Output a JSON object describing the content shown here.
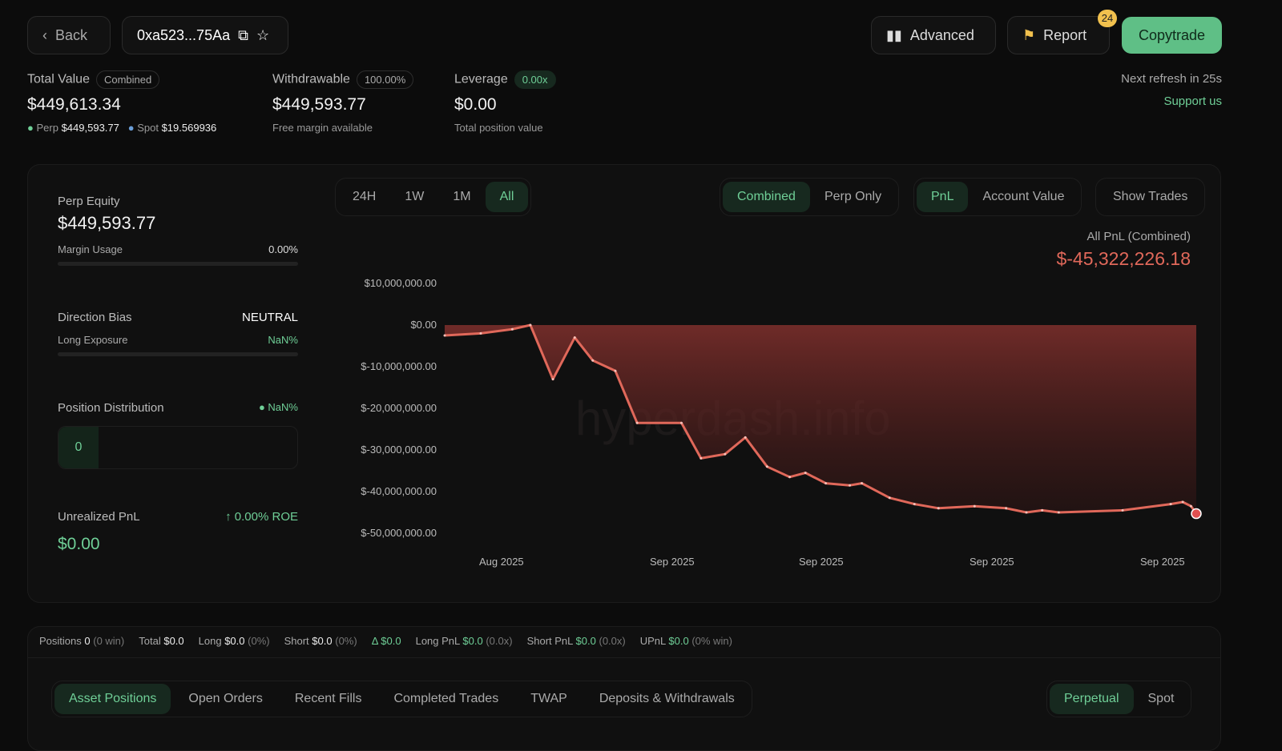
{
  "header": {
    "back": "Back",
    "address": "0xa523...75Aa",
    "advanced": "Advanced",
    "report": "Report",
    "report_badge": "24",
    "copytrade": "Copytrade",
    "next_refresh": "Next refresh in 25s",
    "support": "Support us"
  },
  "summary": {
    "total": {
      "label": "Total Value",
      "pill": "Combined",
      "value": "$449,613.34",
      "perp_label": "Perp",
      "perp_value": "$449,593.77",
      "spot_label": "Spot",
      "spot_value": "$19.569936"
    },
    "withdrawable": {
      "label": "Withdrawable",
      "pill": "100.00%",
      "value": "$449,593.77",
      "sub": "Free margin available"
    },
    "leverage": {
      "label": "Leverage",
      "pill": "0.00x",
      "value": "$0.00",
      "sub": "Total position value"
    }
  },
  "left": {
    "perp_equity_label": "Perp Equity",
    "perp_equity": "$449,593.77",
    "margin_usage_label": "Margin Usage",
    "margin_usage": "0.00%",
    "direction_label": "Direction Bias",
    "direction": "NEUTRAL",
    "long_exposure_label": "Long Exposure",
    "long_exposure": "NaN%",
    "distribution_label": "Position Distribution",
    "distribution_pct": "NaN%",
    "distribution_count": "0",
    "upnl_label": "Unrealized PnL",
    "roe": "↑ 0.00% ROE",
    "upnl": "$0.00"
  },
  "chart_controls": {
    "ranges": [
      "24H",
      "1W",
      "1M",
      "All"
    ],
    "modes": [
      "Combined",
      "Perp Only"
    ],
    "metrics": [
      "PnL",
      "Account Value"
    ],
    "show_trades": "Show Trades"
  },
  "chart_data": {
    "type": "area",
    "title": "All PnL (Combined)",
    "headline": "$-45,322,226.18",
    "watermark": "hyperdash.info",
    "ylim": [
      -50000000,
      10000000
    ],
    "yticks": [
      "$10,000,000.00",
      "$0.00",
      "$-10,000,000.00",
      "$-20,000,000.00",
      "$-30,000,000.00",
      "$-40,000,000.00",
      "$-50,000,000.00"
    ],
    "xticks": [
      "Aug 2025",
      "Sep 2025",
      "Sep 2025",
      "Sep 2025",
      "Sep 2025"
    ],
    "x": [
      0,
      4.8,
      9.0,
      11.4,
      14.4,
      17.3,
      19.7,
      22.7,
      25.6,
      31.5,
      34.1,
      37.3,
      40.0,
      42.9,
      45.9,
      48.0,
      50.7,
      53.9,
      55.5,
      59.2,
      62.5,
      65.7,
      70.5,
      74.7,
      77.4,
      79.5,
      81.7,
      90.2,
      96.6,
      98.2,
      99.3,
      100
    ],
    "values": [
      -2.5,
      -2,
      -1,
      0,
      -13,
      -3,
      -8.5,
      -11,
      -23.5,
      -23.5,
      -32,
      -31,
      -27,
      -34,
      -36.5,
      -35.5,
      -38,
      -38.5,
      -38,
      -41.5,
      -43,
      -44,
      -43.5,
      -44,
      -45,
      -44.5,
      -45,
      -44.5,
      -43,
      -42.5,
      -43.5,
      -45.3
    ],
    "value_unit": "millions USD",
    "color": "#e0685a"
  },
  "stats": {
    "positions_label": "Positions",
    "positions": "0",
    "positions_win": "(0 win)",
    "total_label": "Total",
    "total": "$0.0",
    "long_label": "Long",
    "long": "$0.0",
    "long_pct": "(0%)",
    "short_label": "Short",
    "short": "$0.0",
    "short_pct": "(0%)",
    "delta_label": "Δ",
    "delta": "$0.0",
    "longpnl_label": "Long PnL",
    "longpnl": "$0.0",
    "longpnl_x": "(0.0x)",
    "shortpnl_label": "Short PnL",
    "shortpnl": "$0.0",
    "shortpnl_x": "(0.0x)",
    "upnl_label": "UPnL",
    "upnl": "$0.0",
    "upnl_win": "(0% win)"
  },
  "tabs": [
    "Asset Positions",
    "Open Orders",
    "Recent Fills",
    "Completed Trades",
    "TWAP",
    "Deposits & Withdrawals"
  ],
  "market_tabs": [
    "Perpetual",
    "Spot"
  ]
}
